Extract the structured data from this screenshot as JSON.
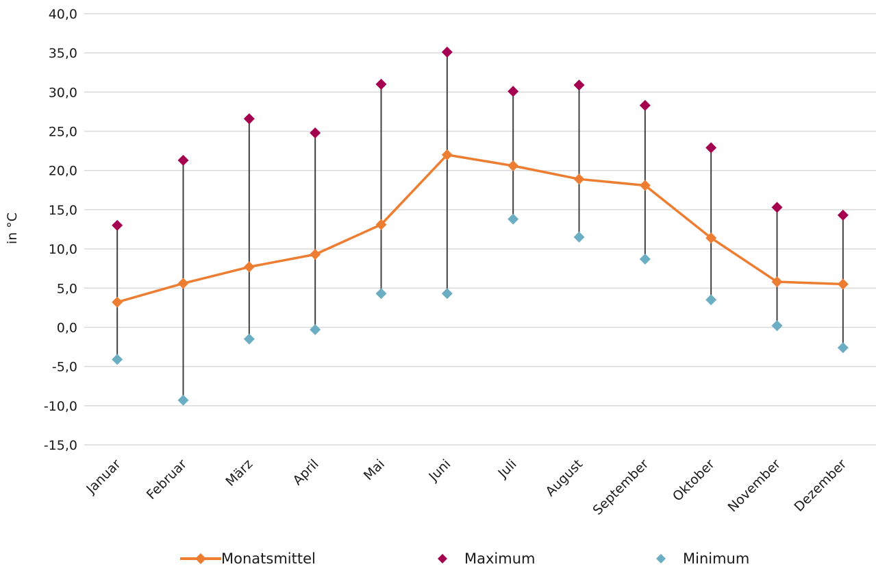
{
  "chart_data": {
    "type": "line",
    "title": "",
    "xlabel": "",
    "ylabel": "in °C",
    "ylim": [
      -15,
      40
    ],
    "ytick_step": 5,
    "ytick_labels": [
      "-15,0",
      "-10,0",
      "-5,0",
      "0,0",
      "5,0",
      "10,0",
      "15,0",
      "20,0",
      "25,0",
      "30,0",
      "35,0",
      "40,0"
    ],
    "categories": [
      "Januar",
      "Februar",
      "März",
      "April",
      "Mai",
      "Juni",
      "Juli",
      "August",
      "September",
      "Oktober",
      "November",
      "Dezember"
    ],
    "grid": "horizontal",
    "legend_position": "bottom",
    "series": [
      {
        "name": "Monatsmittel",
        "kind": "line",
        "marker": "diamond",
        "color": "#ed7d31",
        "values": [
          3.2,
          5.6,
          7.7,
          9.3,
          13.1,
          22.0,
          20.6,
          18.9,
          18.1,
          11.4,
          5.8,
          5.5
        ]
      },
      {
        "name": "Maximum",
        "kind": "marker",
        "marker": "diamond",
        "color": "#a50050",
        "values": [
          13.0,
          21.3,
          26.6,
          24.8,
          31.0,
          35.1,
          30.1,
          30.9,
          28.3,
          22.9,
          15.3,
          14.3
        ]
      },
      {
        "name": "Minimum",
        "kind": "marker",
        "marker": "diamond",
        "color": "#6badc3",
        "values": [
          -4.1,
          -9.3,
          -1.5,
          -0.3,
          4.3,
          4.3,
          13.8,
          11.5,
          8.7,
          3.5,
          0.2,
          -2.6
        ]
      }
    ],
    "range_line_color": "#404040"
  }
}
